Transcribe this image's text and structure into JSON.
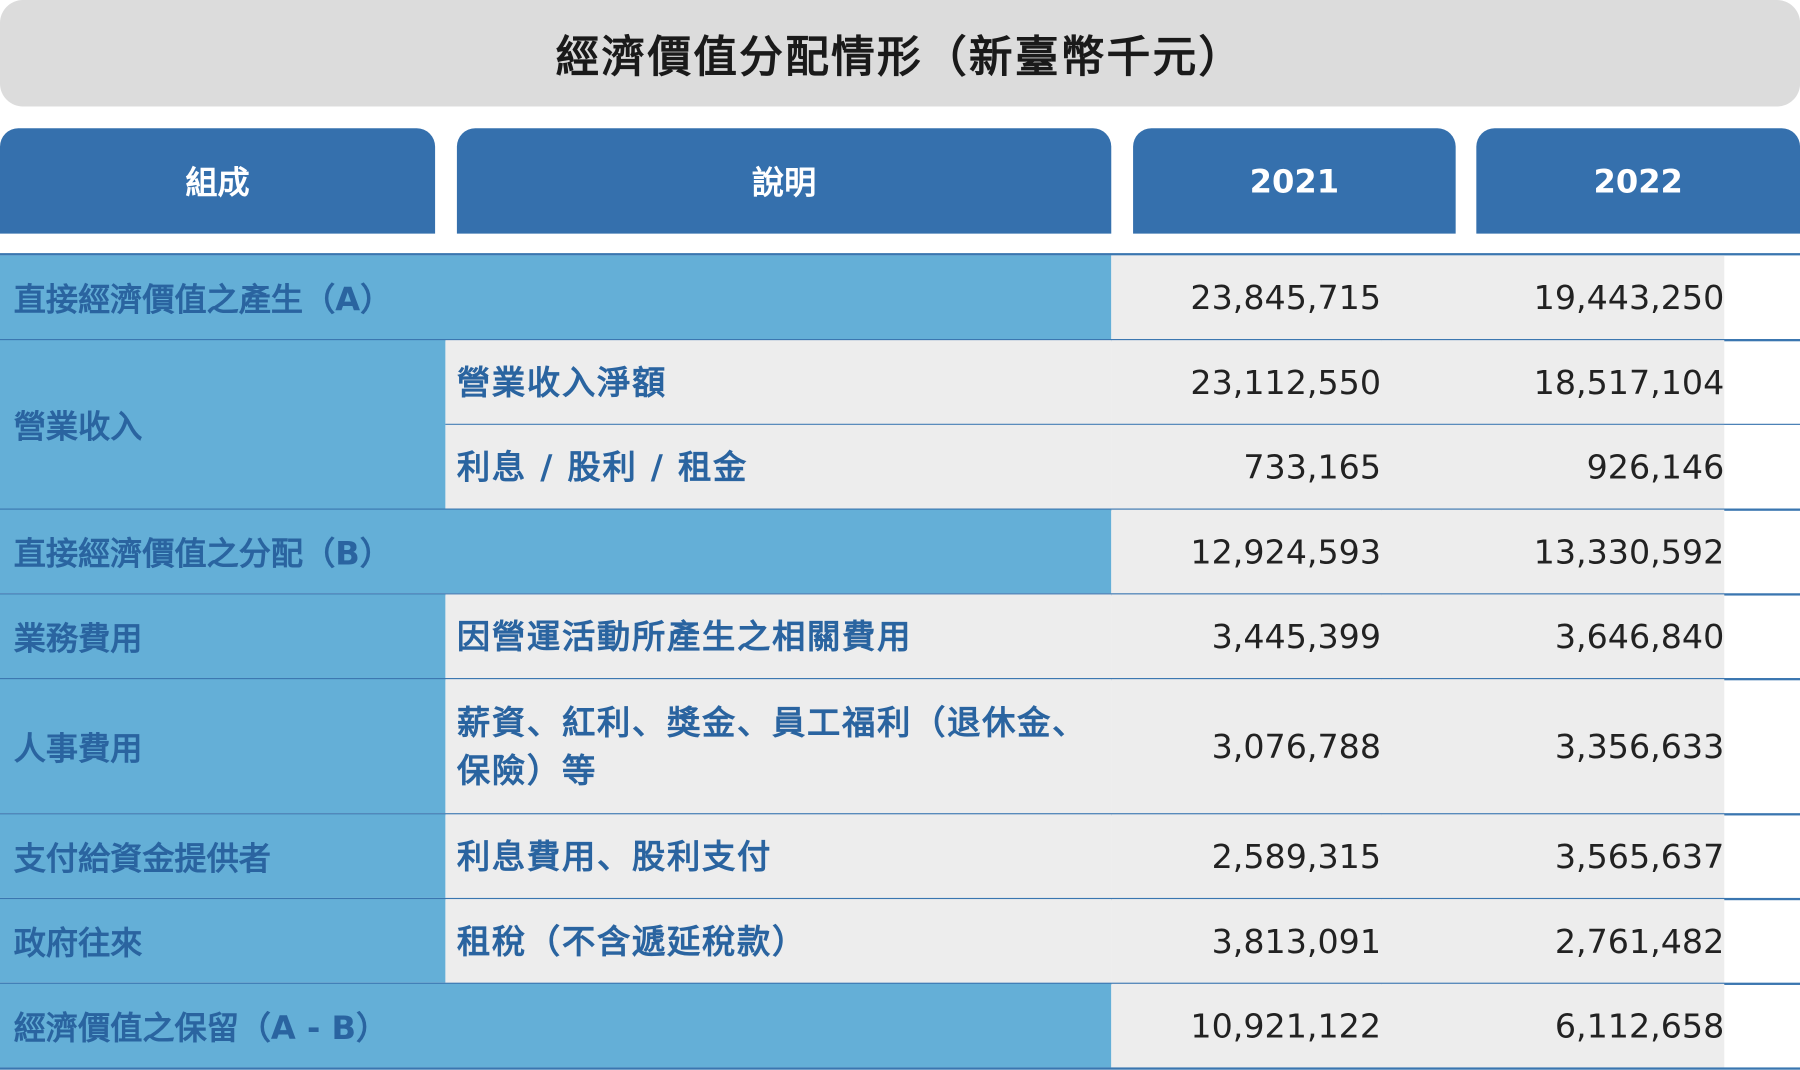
{
  "title": "經濟價值分配情形（新臺幣千元）",
  "table": {
    "header": [
      "組成",
      "說明",
      "2021",
      "2022"
    ],
    "rows": [
      {
        "component": "直接經濟價值之產生（A）",
        "values": [
          "23,845,715",
          "19,443,250"
        ]
      },
      {
        "component": "營業收入",
        "items": [
          {
            "description": "營業收入淨額",
            "values": [
              "23,112,550",
              "18,517,104"
            ]
          },
          {
            "description": "利息 / 股利 / 租金",
            "values": [
              "733,165",
              "926,146"
            ]
          }
        ]
      },
      {
        "component": "直接經濟價值之分配（B）",
        "values": [
          "12,924,593",
          "13,330,592"
        ]
      },
      {
        "component": "業務費用",
        "items": [
          {
            "description": "因營運活動所產生之相關費用",
            "values": [
              "3,445,399",
              "3,646,840"
            ]
          }
        ]
      },
      {
        "component": "人事費用",
        "items": [
          {
            "description": "薪資、紅利、獎金、員工福利（退休金、保險）等",
            "values": [
              "3,076,788",
              "3,356,633"
            ]
          }
        ]
      },
      {
        "component": "支付給資金提供者",
        "items": [
          {
            "description": "利息費用、股利支付",
            "values": [
              "2,589,315",
              "3,565,637"
            ]
          }
        ]
      },
      {
        "component": "政府往來",
        "items": [
          {
            "description": "租稅（不含遞延稅款）",
            "values": [
              "3,813,091",
              "2,761,482"
            ]
          }
        ]
      },
      {
        "component": "經濟價值之保留（A - B）",
        "values": [
          "10,921,122",
          "6,112,658"
        ]
      }
    ]
  }
}
